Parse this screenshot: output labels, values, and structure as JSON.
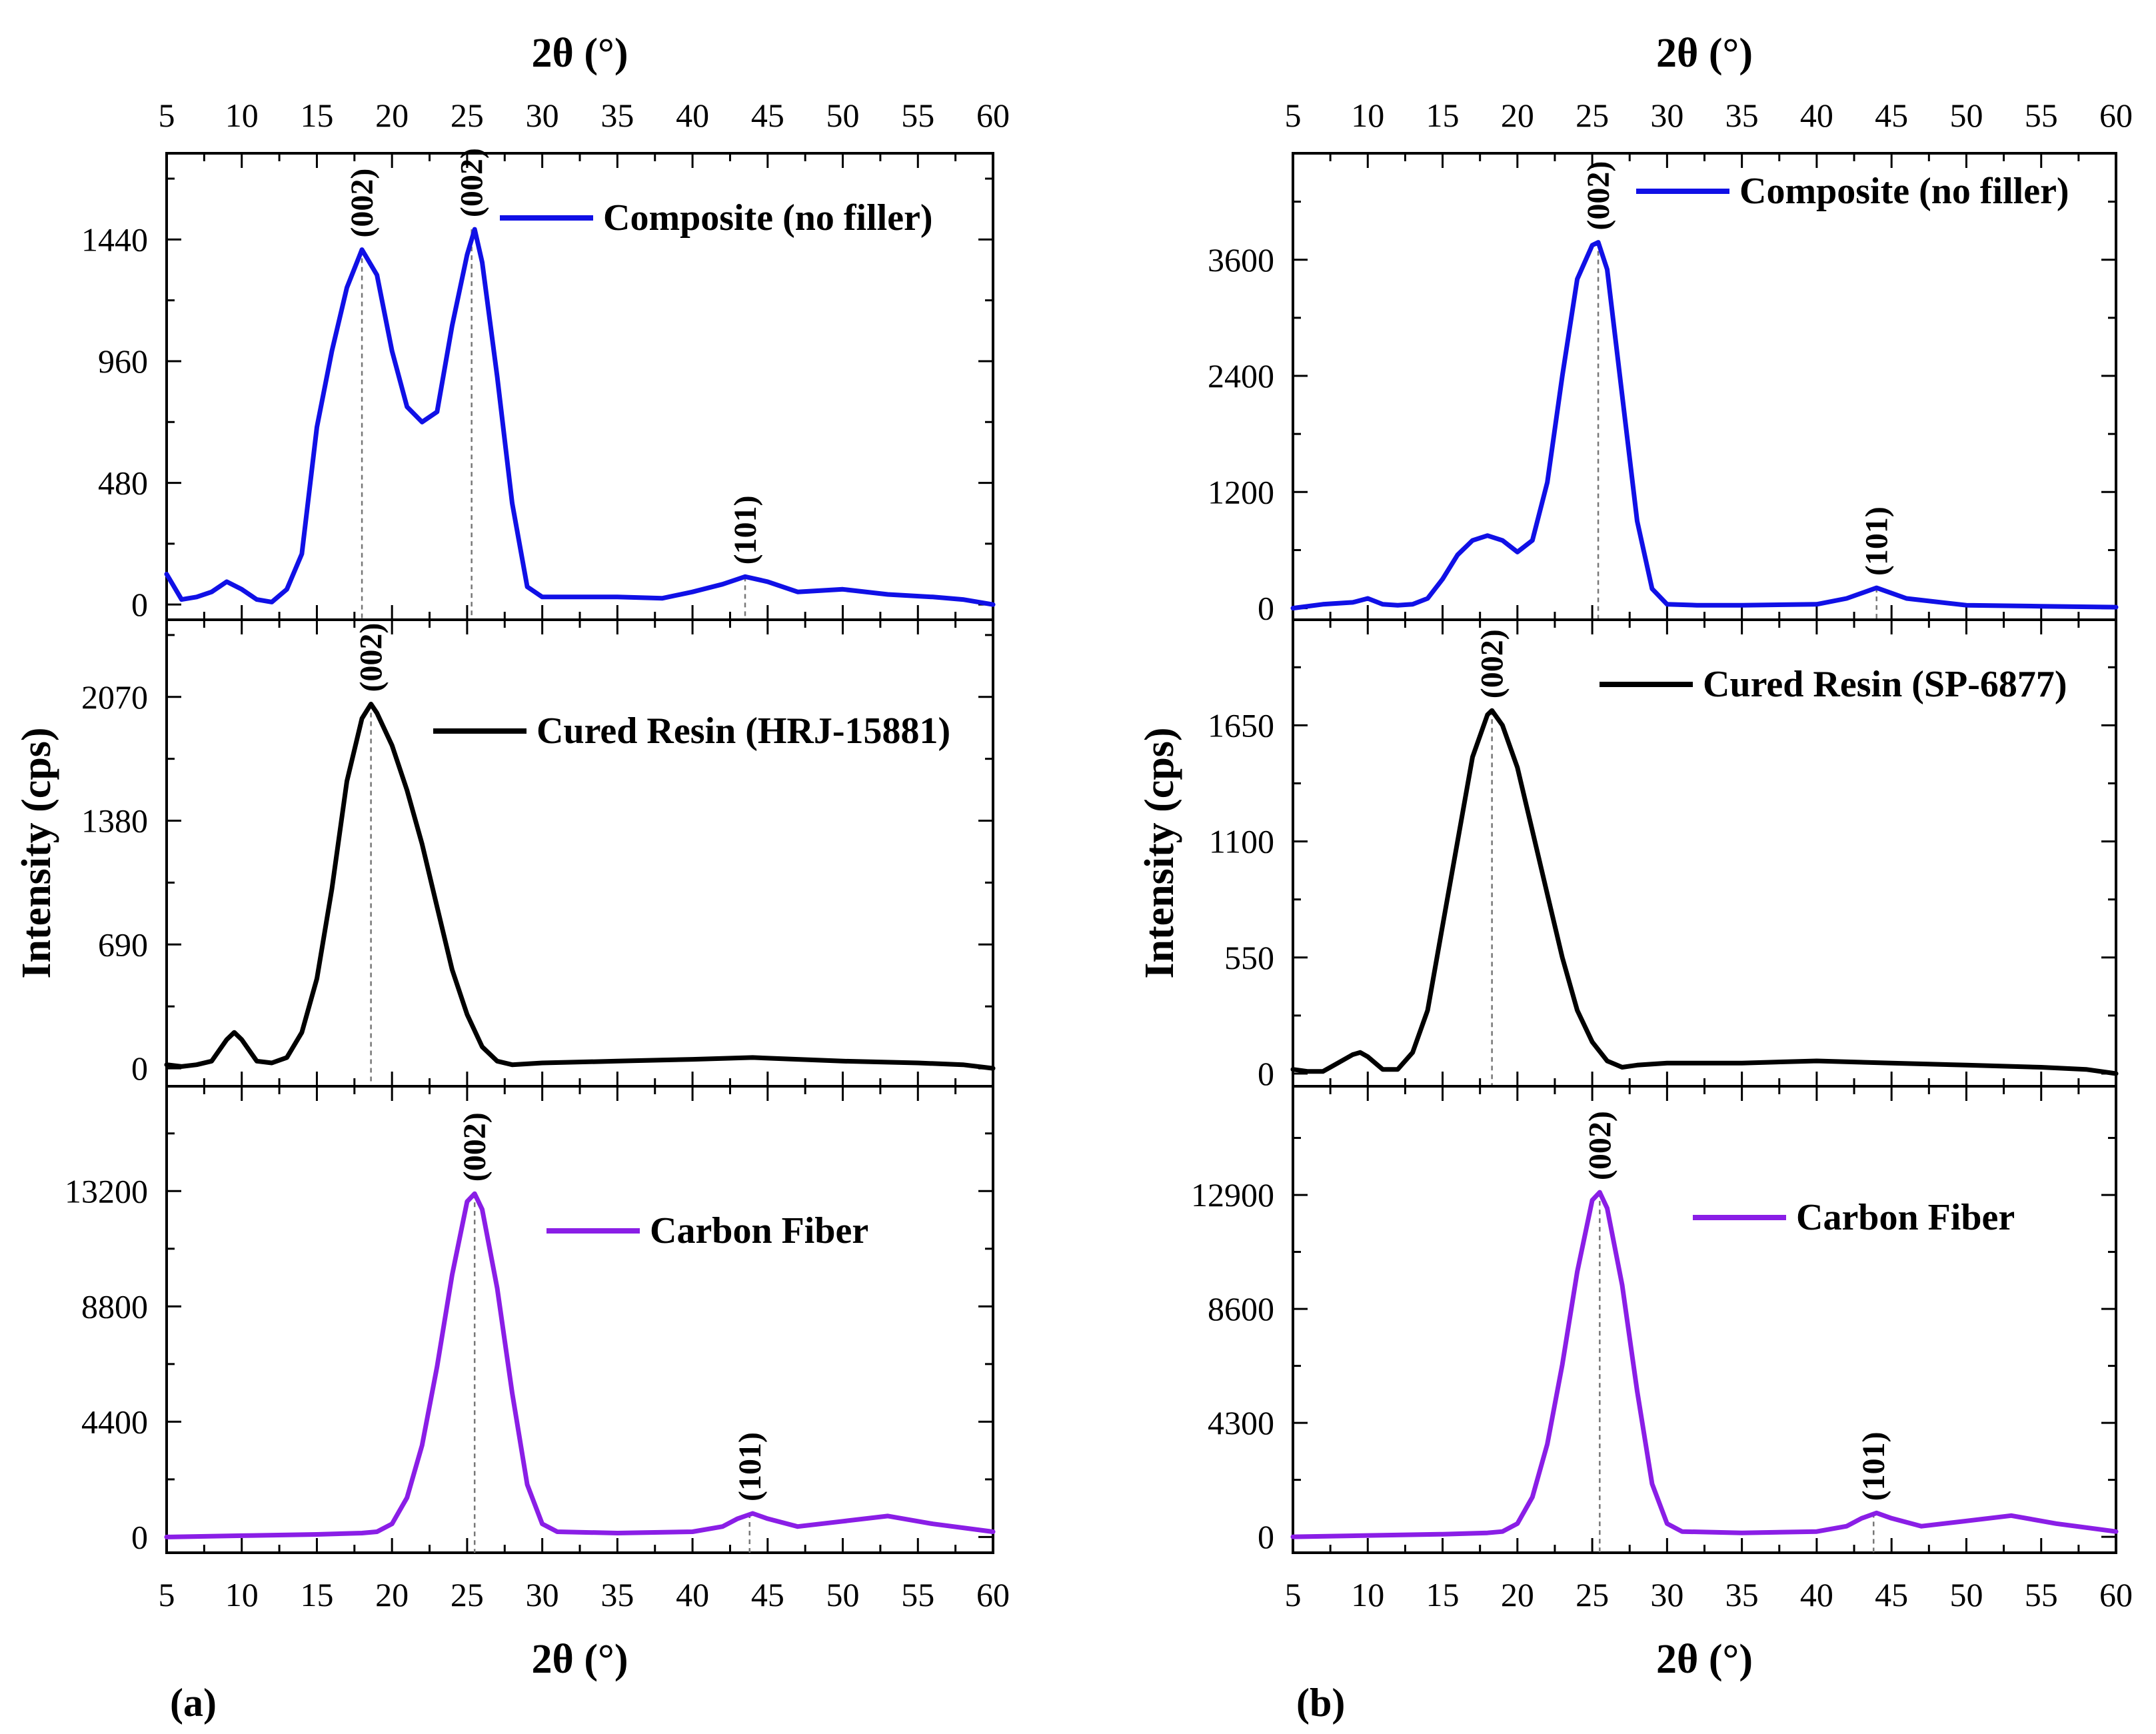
{
  "figure": {
    "x_title": "2θ (°)",
    "y_title": "Intensity (cps)"
  },
  "colors": {
    "composite": "#1010e6",
    "resin": "#000000",
    "fiber": "#8a1ee6",
    "guide": "#777777"
  },
  "chart_data": [
    {
      "panel": "(a)",
      "type": "line",
      "xlabel": "2θ (°)",
      "ylabel": "Intensity (cps)",
      "xlim": [
        5,
        60
      ],
      "xticks": [
        5,
        10,
        15,
        20,
        25,
        30,
        35,
        40,
        45,
        50,
        55,
        60
      ],
      "subplots": [
        {
          "legend": "Composite (no filler)",
          "color_key": "composite",
          "ylim": [
            -60,
            1780
          ],
          "yticks": [
            0,
            480,
            960,
            1440
          ],
          "series_x": [
            5,
            6,
            7,
            8,
            9,
            10,
            11,
            12,
            13,
            14,
            15,
            16,
            17,
            18,
            19,
            20,
            21,
            22,
            23,
            24,
            25,
            25.5,
            26,
            27,
            28,
            29,
            30,
            32,
            35,
            38,
            40,
            42,
            43.5,
            45,
            47,
            50,
            53,
            56,
            58,
            60
          ],
          "series_y": [
            120,
            20,
            30,
            50,
            90,
            60,
            20,
            10,
            60,
            200,
            700,
            1000,
            1250,
            1400,
            1300,
            1000,
            780,
            720,
            760,
            1100,
            1380,
            1480,
            1350,
            900,
            400,
            70,
            30,
            30,
            30,
            25,
            50,
            80,
            110,
            90,
            50,
            60,
            40,
            30,
            20,
            0
          ],
          "peaks": [
            {
              "label": "(002)",
              "x": 18,
              "y": 1400
            },
            {
              "label": "(002)",
              "x": 25.3,
              "y": 1480
            },
            {
              "label": "(101)",
              "x": 43.5,
              "y": 110
            }
          ]
        },
        {
          "legend": "Cured Resin (HRJ-15881)",
          "color_key": "resin",
          "ylim": [
            -100,
            2500
          ],
          "yticks": [
            0,
            690,
            1380,
            2070
          ],
          "series_x": [
            5,
            6,
            7,
            8,
            9,
            9.5,
            10,
            11,
            12,
            13,
            14,
            15,
            16,
            17,
            18,
            18.6,
            19,
            20,
            21,
            22,
            23,
            24,
            25,
            26,
            27,
            28,
            30,
            35,
            40,
            44,
            50,
            55,
            58,
            60
          ],
          "series_y": [
            20,
            10,
            20,
            40,
            160,
            200,
            160,
            40,
            30,
            60,
            200,
            500,
            1000,
            1600,
            1950,
            2030,
            1980,
            1800,
            1550,
            1250,
            900,
            550,
            300,
            120,
            40,
            20,
            30,
            40,
            50,
            60,
            40,
            30,
            20,
            0
          ],
          "peaks": [
            {
              "label": "(002)",
              "x": 18.6,
              "y": 2030
            }
          ]
        },
        {
          "legend": "Carbon Fiber",
          "color_key": "fiber",
          "ylim": [
            -600,
            17200
          ],
          "yticks": [
            0,
            4400,
            8800,
            13200
          ],
          "series_x": [
            5,
            10,
            15,
            18,
            19,
            20,
            21,
            22,
            23,
            24,
            25,
            25.5,
            26,
            27,
            28,
            29,
            30,
            31,
            35,
            40,
            42,
            43,
            44,
            45,
            47,
            50,
            53,
            56,
            60
          ],
          "series_y": [
            0,
            50,
            100,
            150,
            200,
            500,
            1500,
            3500,
            6500,
            10000,
            12800,
            13100,
            12500,
            9500,
            5500,
            2000,
            500,
            200,
            150,
            200,
            400,
            700,
            900,
            700,
            400,
            600,
            800,
            500,
            200
          ],
          "peaks": [
            {
              "label": "(002)",
              "x": 25.5,
              "y": 13100
            },
            {
              "label": "(101)",
              "x": 43.8,
              "y": 900
            }
          ]
        }
      ]
    },
    {
      "panel": "(b)",
      "type": "line",
      "xlabel": "2θ (°)",
      "ylabel": "Intensity (cps)",
      "xlim": [
        5,
        60
      ],
      "xticks": [
        5,
        10,
        15,
        20,
        25,
        30,
        35,
        40,
        45,
        50,
        55,
        60
      ],
      "subplots": [
        {
          "legend": "Composite (no filler)",
          "color_key": "composite",
          "ylim": [
            -120,
            4700
          ],
          "yticks": [
            0,
            1200,
            2400,
            3600
          ],
          "series_x": [
            5,
            7,
            9,
            10,
            11,
            12,
            13,
            14,
            15,
            16,
            17,
            18,
            19,
            20,
            21,
            22,
            23,
            24,
            25,
            25.4,
            26,
            27,
            28,
            29,
            30,
            32,
            35,
            40,
            42,
            44,
            46,
            50,
            55,
            60
          ],
          "series_y": [
            0,
            40,
            60,
            100,
            40,
            30,
            40,
            100,
            300,
            550,
            700,
            750,
            700,
            580,
            700,
            1300,
            2400,
            3400,
            3750,
            3780,
            3500,
            2200,
            900,
            200,
            40,
            30,
            30,
            40,
            100,
            210,
            100,
            30,
            20,
            10
          ],
          "peaks": [
            {
              "label": "(002)",
              "x": 25.4,
              "y": 3780
            },
            {
              "label": "(101)",
              "x": 44,
              "y": 210
            }
          ]
        },
        {
          "legend": "Cured Resin (SP-6877)",
          "color_key": "resin",
          "ylim": [
            -60,
            2150
          ],
          "yticks": [
            0,
            550,
            1100,
            1650
          ],
          "series_x": [
            5,
            6,
            7,
            8,
            9,
            9.5,
            10,
            11,
            12,
            13,
            14,
            15,
            16,
            17,
            18,
            18.3,
            19,
            20,
            21,
            22,
            23,
            24,
            25,
            26,
            27,
            28,
            30,
            35,
            40,
            45,
            50,
            55,
            58,
            60
          ],
          "series_y": [
            20,
            10,
            10,
            50,
            90,
            100,
            80,
            20,
            20,
            100,
            300,
            700,
            1100,
            1500,
            1700,
            1720,
            1650,
            1450,
            1150,
            850,
            550,
            300,
            150,
            60,
            30,
            40,
            50,
            50,
            60,
            50,
            40,
            30,
            20,
            0
          ],
          "peaks": [
            {
              "label": "(002)",
              "x": 18.3,
              "y": 1720
            }
          ]
        },
        {
          "legend": "Carbon Fiber",
          "color_key": "fiber",
          "ylim": [
            -600,
            17000
          ],
          "yticks": [
            0,
            4300,
            8600,
            12900
          ],
          "series_x": [
            5,
            10,
            15,
            18,
            19,
            20,
            21,
            22,
            23,
            24,
            25,
            25.5,
            26,
            27,
            28,
            29,
            30,
            31,
            35,
            40,
            42,
            43,
            44,
            45,
            47,
            50,
            53,
            56,
            60
          ],
          "series_y": [
            0,
            50,
            100,
            150,
            200,
            500,
            1500,
            3500,
            6500,
            10000,
            12700,
            13000,
            12400,
            9500,
            5500,
            2000,
            500,
            200,
            150,
            200,
            400,
            700,
            900,
            700,
            400,
            600,
            800,
            500,
            200
          ],
          "peaks": [
            {
              "label": "(002)",
              "x": 25.5,
              "y": 13000
            },
            {
              "label": "(101)",
              "x": 43.8,
              "y": 900
            }
          ]
        }
      ]
    }
  ]
}
